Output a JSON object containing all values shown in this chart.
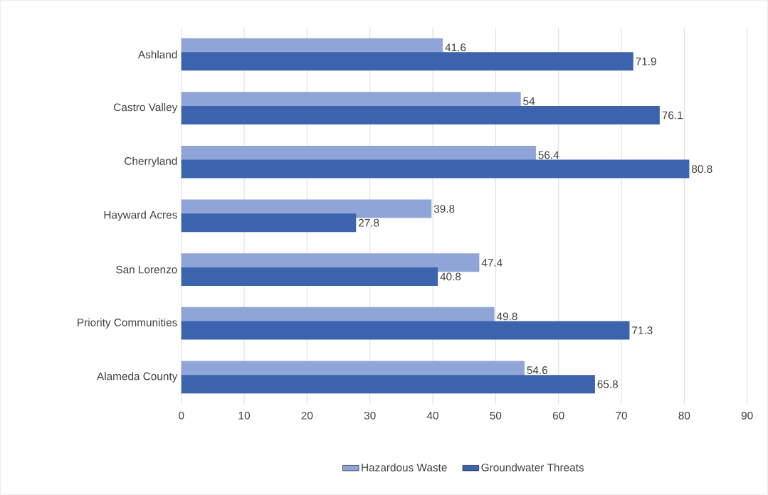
{
  "chart_data": {
    "type": "bar",
    "orientation": "horizontal",
    "categories": [
      "Ashland",
      "Castro Valley",
      "Cherryland",
      "Hayward Acres",
      "San Lorenzo",
      "Priority Communities",
      "Alameda County"
    ],
    "series": [
      {
        "name": "Hazardous Waste",
        "color": "#8fa5d8",
        "values": [
          41.6,
          54,
          56.4,
          39.8,
          47.4,
          49.8,
          54.6
        ]
      },
      {
        "name": "Groundwater Threats",
        "color": "#3c64ae",
        "values": [
          71.9,
          76.1,
          80.8,
          27.8,
          40.8,
          71.3,
          65.8
        ]
      }
    ],
    "xlim": [
      0,
      90
    ],
    "xticks": [
      0,
      10,
      20,
      30,
      40,
      50,
      60,
      70,
      80,
      90
    ],
    "grid": "x",
    "legend": "bottom",
    "data_labels": true
  }
}
